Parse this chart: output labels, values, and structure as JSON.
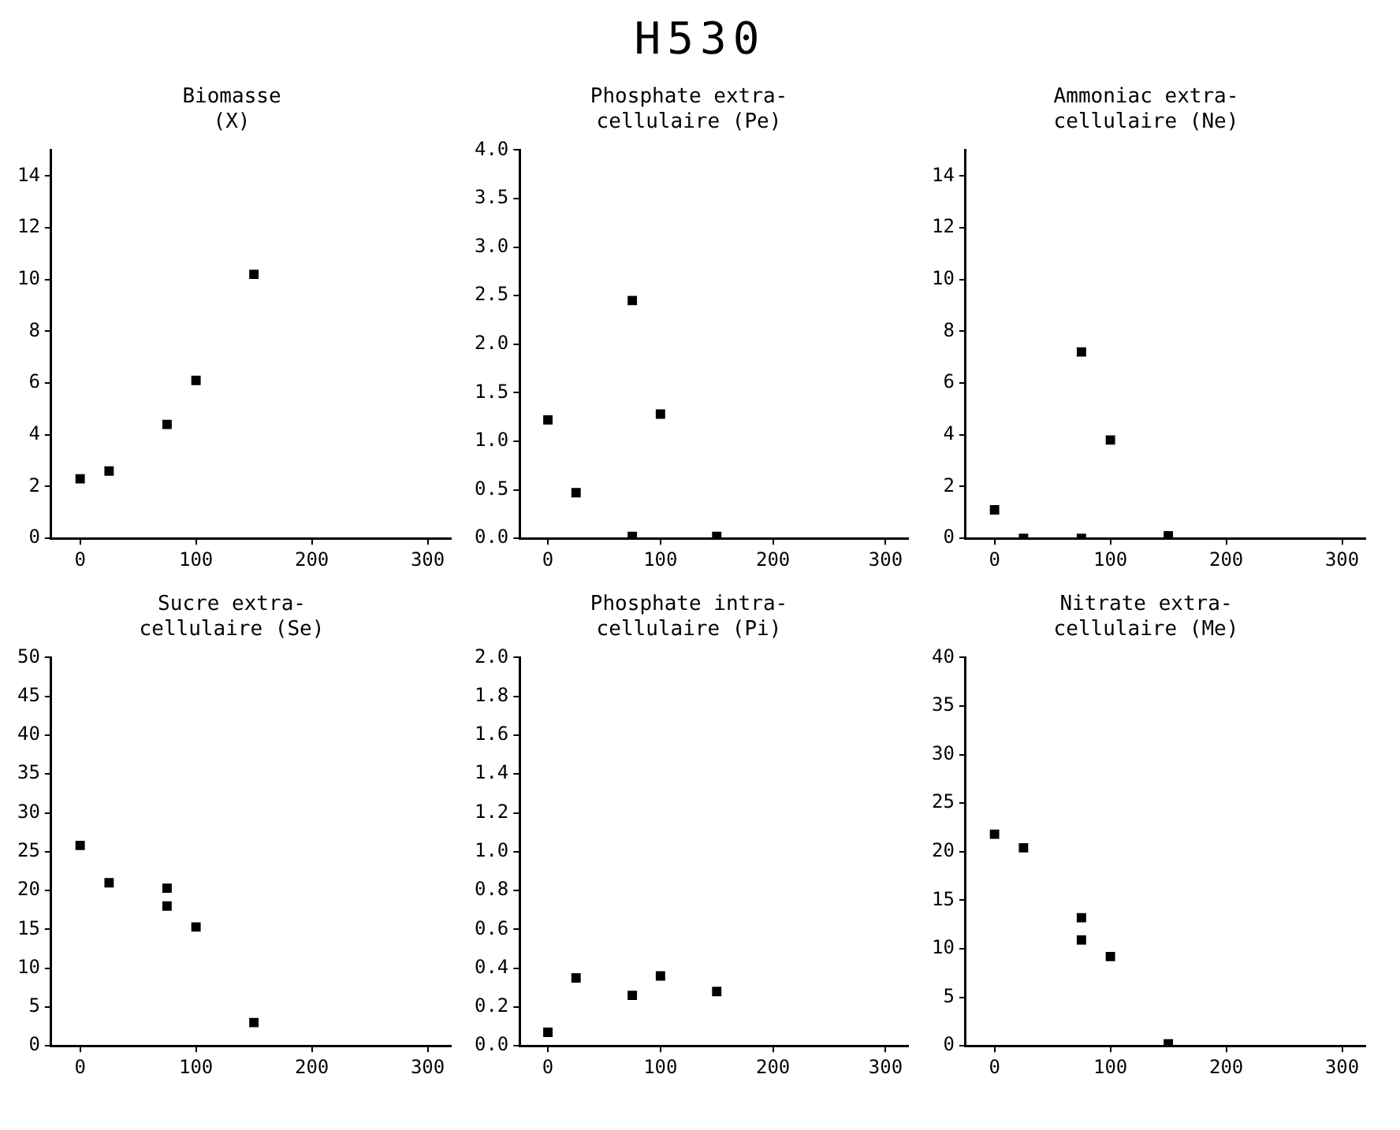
{
  "chart_data": [
    {
      "type": "other",
      "title": "H530"
    },
    {
      "type": "scatter",
      "title": "Biomasse\n(X)",
      "marker": "square",
      "xlim": [
        -25,
        320
      ],
      "xticks": [
        0,
        100,
        200,
        300
      ],
      "ylim": [
        0,
        15
      ],
      "yticks": [
        0,
        2,
        4,
        6,
        8,
        10,
        12,
        14
      ],
      "series": [
        {
          "color": "#000000",
          "x": [
            0,
            25,
            75,
            100,
            150
          ],
          "values": [
            2.3,
            2.6,
            4.4,
            6.1,
            10.2
          ]
        }
      ]
    },
    {
      "type": "scatter",
      "title": "Phosphate extra-\ncellulaire (Pe)",
      "marker": "square",
      "xlim": [
        -25,
        320
      ],
      "xticks": [
        0,
        100,
        200,
        300
      ],
      "ylim": [
        0,
        4
      ],
      "yticks": [
        {
          "value": 0,
          "label": "0.0"
        },
        {
          "value": 0.5,
          "label": "0.5"
        },
        {
          "value": 1,
          "label": "1.0"
        },
        {
          "value": 1.5,
          "label": "1.5"
        },
        {
          "value": 2,
          "label": "2.0"
        },
        {
          "value": 2.5,
          "label": "2.5"
        },
        {
          "value": 3,
          "label": "3.0"
        },
        {
          "value": 3.5,
          "label": "3.5"
        },
        {
          "value": 4,
          "label": "4.0"
        }
      ],
      "series": [
        {
          "color": "#000000",
          "x": [
            0,
            25,
            75,
            75,
            100,
            150
          ],
          "values": [
            1.22,
            0.47,
            2.45,
            0.02,
            1.28,
            0.02
          ]
        }
      ]
    },
    {
      "type": "scatter",
      "title": "Ammoniac extra-\ncellulaire (Ne)",
      "marker": "square",
      "xlim": [
        -25,
        320
      ],
      "xticks": [
        0,
        100,
        200,
        300
      ],
      "ylim": [
        0,
        15
      ],
      "yticks": [
        0,
        2,
        4,
        6,
        8,
        10,
        12,
        14
      ],
      "series": [
        {
          "color": "#000000",
          "x": [
            0,
            25,
            75,
            75,
            100,
            150
          ],
          "values": [
            1.1,
            0,
            7.2,
            0,
            3.8,
            0.1
          ]
        }
      ]
    },
    {
      "type": "scatter",
      "title": "Sucre extra-\ncellulaire (Se)",
      "marker": "square",
      "xlim": [
        -25,
        320
      ],
      "xticks": [
        0,
        100,
        200,
        300
      ],
      "ylim": [
        0,
        50
      ],
      "yticks": [
        0,
        5,
        10,
        15,
        20,
        25,
        30,
        35,
        40,
        45,
        50
      ],
      "series": [
        {
          "color": "#000000",
          "x": [
            0,
            25,
            75,
            75,
            100,
            150
          ],
          "values": [
            25.8,
            21,
            20.3,
            18,
            15.3,
            3
          ]
        }
      ]
    },
    {
      "type": "scatter",
      "title": "Phosphate intra-\ncellulaire (Pi)",
      "marker": "square",
      "xlim": [
        -25,
        320
      ],
      "xticks": [
        0,
        100,
        200,
        300
      ],
      "ylim": [
        0,
        2
      ],
      "yticks": [
        {
          "value": 0,
          "label": "0.0"
        },
        {
          "value": 0.2,
          "label": "0.2"
        },
        {
          "value": 0.4,
          "label": "0.4"
        },
        {
          "value": 0.6,
          "label": "0.6"
        },
        {
          "value": 0.8,
          "label": "0.8"
        },
        {
          "value": 1,
          "label": "1.0"
        },
        {
          "value": 1.2,
          "label": "1.2"
        },
        {
          "value": 1.4,
          "label": "1.4"
        },
        {
          "value": 1.6,
          "label": "1.6"
        },
        {
          "value": 1.8,
          "label": "1.8"
        },
        {
          "value": 2,
          "label": "2.0"
        }
      ],
      "series": [
        {
          "color": "#000000",
          "x": [
            0,
            25,
            75,
            100,
            150
          ],
          "values": [
            0.07,
            0.35,
            0.26,
            0.36,
            0.28
          ]
        }
      ]
    },
    {
      "type": "scatter",
      "title": "Nitrate extra-\ncellulaire (Me)",
      "marker": "square",
      "xlim": [
        -25,
        320
      ],
      "xticks": [
        0,
        100,
        200,
        300
      ],
      "ylim": [
        0,
        40
      ],
      "yticks": [
        0,
        5,
        10,
        15,
        20,
        25,
        30,
        35,
        40
      ],
      "series": [
        {
          "color": "#000000",
          "x": [
            0,
            25,
            75,
            75,
            100,
            150
          ],
          "values": [
            21.8,
            20.4,
            13.2,
            10.9,
            9.2,
            0.2
          ]
        }
      ]
    }
  ]
}
